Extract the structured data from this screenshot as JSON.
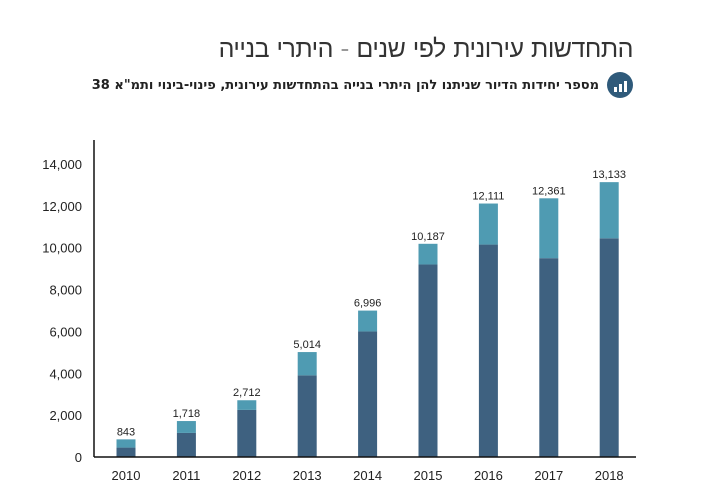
{
  "header": {
    "title": "התחדשות עירונית לפי שנים - היתרי בנייה",
    "subtitle": "מספר יחידות הדיור שניתנו להן היתרי בנייה בהתחדשות עירונית, פינוי-בינוי ותמ\"א 38",
    "icon": "bar-chart-icon"
  },
  "colors": {
    "lower": "#3e6180",
    "upper": "#4f9bb2",
    "axis": "#111111"
  },
  "chart_data": {
    "type": "bar",
    "stacked": true,
    "categories": [
      "2010",
      "2011",
      "2012",
      "2013",
      "2014",
      "2015",
      "2016",
      "2017",
      "2018"
    ],
    "series": [
      {
        "values": [
          450,
          1150,
          2250,
          3900,
          6000,
          9200,
          10150,
          9500,
          10450
        ]
      },
      {
        "values": [
          393,
          568,
          462,
          1114,
          996,
          987,
          1961,
          2861,
          2683
        ]
      }
    ],
    "totals": [
      843,
      1718,
      2712,
      5014,
      6996,
      10187,
      12111,
      12361,
      13133
    ],
    "total_labels": [
      "843",
      "1,718",
      "2,712",
      "5,014",
      "6,996",
      "10,187",
      "12,111",
      "12,361",
      "13,133"
    ],
    "yticks": [
      0,
      2000,
      4000,
      6000,
      8000,
      10000,
      12000,
      14000
    ],
    "ytick_labels": [
      "0",
      "2,000",
      "4,000",
      "6,000",
      "8,000",
      "10,000",
      "12,000",
      "14,000"
    ],
    "ylim": [
      0,
      15000
    ],
    "grid": false,
    "legend": "none"
  }
}
